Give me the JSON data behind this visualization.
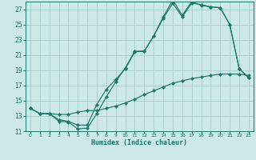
{
  "xlabel": "Humidex (Indice chaleur)",
  "bg_color": "#cce8e8",
  "grid_color": "#aacccc",
  "line_color": "#1a7a6a",
  "xlim": [
    -0.5,
    23.5
  ],
  "ylim": [
    11,
    28
  ],
  "yticks": [
    11,
    13,
    15,
    17,
    19,
    21,
    23,
    25,
    27
  ],
  "xticks": [
    0,
    1,
    2,
    3,
    4,
    5,
    6,
    7,
    8,
    9,
    10,
    11,
    12,
    13,
    14,
    15,
    16,
    17,
    18,
    19,
    20,
    21,
    22,
    23
  ],
  "line1_x": [
    0,
    1,
    2,
    3,
    4,
    5,
    6,
    7,
    8,
    9,
    10,
    11,
    12,
    13,
    14,
    15,
    16,
    17,
    18,
    19,
    20,
    21,
    22,
    23
  ],
  "line1_y": [
    14.0,
    13.3,
    13.3,
    12.3,
    12.2,
    11.3,
    11.4,
    13.3,
    15.5,
    17.5,
    19.3,
    21.5,
    21.5,
    23.5,
    26.0,
    28.2,
    26.2,
    28.0,
    27.5,
    27.3,
    27.2,
    25.0,
    19.2,
    18.0
  ],
  "line2_x": [
    0,
    1,
    2,
    3,
    4,
    5,
    6,
    7,
    8,
    9,
    10,
    11,
    12,
    13,
    14,
    15,
    16,
    17,
    18,
    19,
    20,
    21,
    22,
    23
  ],
  "line2_y": [
    14.0,
    13.3,
    13.3,
    12.5,
    12.3,
    11.8,
    11.8,
    14.5,
    16.5,
    17.8,
    19.2,
    21.4,
    21.5,
    23.5,
    25.8,
    27.8,
    26.0,
    27.8,
    27.6,
    27.3,
    27.2,
    25.0,
    19.2,
    18.0
  ],
  "line3_x": [
    0,
    1,
    2,
    3,
    4,
    5,
    6,
    7,
    8,
    9,
    10,
    11,
    12,
    13,
    14,
    15,
    16,
    17,
    18,
    19,
    20,
    21,
    22,
    23
  ],
  "line3_y": [
    14.0,
    13.3,
    13.3,
    13.2,
    13.2,
    13.5,
    13.7,
    13.7,
    14.0,
    14.3,
    14.7,
    15.2,
    15.8,
    16.3,
    16.8,
    17.3,
    17.6,
    17.9,
    18.1,
    18.3,
    18.5,
    18.5,
    18.5,
    18.3
  ]
}
